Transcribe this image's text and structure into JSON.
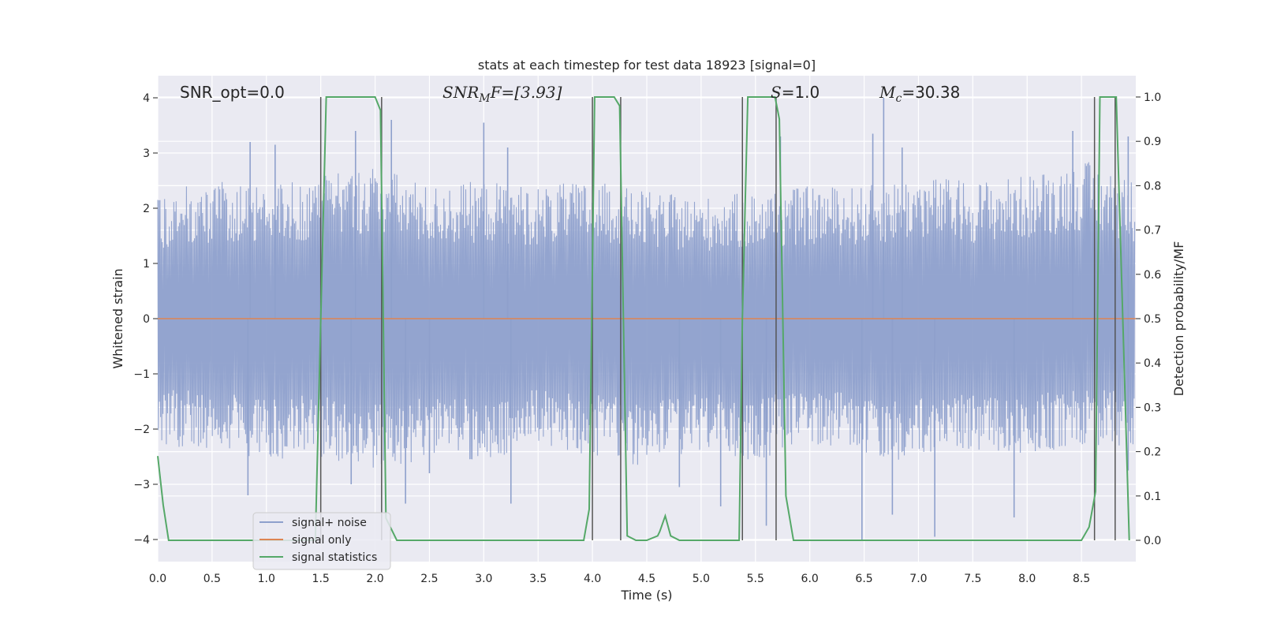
{
  "chart_data": {
    "type": "line",
    "title": "stats at each timestep for test data 18923 [signal=0]",
    "xlabel": "Time (s)",
    "ylabel": "Whitened strain",
    "ylabel_right": "Detection probability/MF",
    "xlim": [
      0.0,
      9.0
    ],
    "ylim": [
      -4.4,
      4.4
    ],
    "ylim_right": [
      -0.048,
      1.048
    ],
    "x_ticks": [
      "0.0",
      "0.5",
      "1.0",
      "1.5",
      "2.0",
      "2.5",
      "3.0",
      "3.5",
      "4.0",
      "4.5",
      "5.0",
      "5.5",
      "6.0",
      "6.5",
      "7.0",
      "7.5",
      "8.0",
      "8.5"
    ],
    "y_ticks": [
      "4",
      "3",
      "2",
      "1",
      "0",
      "−1",
      "−2",
      "−3",
      "−4"
    ],
    "y_ticks_right": [
      "1.0",
      "0.9",
      "0.8",
      "0.7",
      "0.6",
      "0.5",
      "0.4",
      "0.3",
      "0.2",
      "0.1",
      "0.0"
    ],
    "annotations": {
      "snr_opt": "SNR_opt=0.0",
      "snr_mf_base": "SNR",
      "snr_mf_sub": "M",
      "snr_mf_rest": "F=[3.93]",
      "s_sym": "S",
      "s_val": "=1.0",
      "mc_sym": "M",
      "mc_sub": "c",
      "mc_val": "=30.38"
    },
    "legend_position": "lower-left",
    "series": [
      {
        "name": "signal+ noise",
        "color": "#8ea0cc",
        "style": "dense noise",
        "envelope": {
          "x": [
            0.0,
            0.5,
            1.0,
            1.5,
            2.0,
            2.5,
            3.0,
            3.5,
            4.0,
            4.5,
            5.0,
            5.5,
            6.0,
            6.5,
            7.0,
            7.5,
            8.0,
            8.5,
            9.0
          ],
          "upper": [
            2.3,
            2.5,
            2.4,
            2.6,
            2.8,
            2.4,
            2.5,
            2.4,
            2.5,
            2.3,
            2.2,
            2.3,
            2.4,
            2.4,
            2.6,
            2.5,
            2.6,
            2.9,
            2.5
          ],
          "lower": [
            -2.3,
            -2.4,
            -2.6,
            -2.5,
            -2.8,
            -2.5,
            -2.6,
            -2.3,
            -2.5,
            -2.7,
            -2.4,
            -2.6,
            -2.3,
            -2.5,
            -2.6,
            -2.4,
            -2.5,
            -2.3,
            -2.4
          ]
        },
        "spikes": [
          [
            0.85,
            3.2
          ],
          [
            1.08,
            3.15
          ],
          [
            1.82,
            3.4
          ],
          [
            2.15,
            3.6
          ],
          [
            3.0,
            3.55
          ],
          [
            3.22,
            3.1
          ],
          [
            5.73,
            3.3
          ],
          [
            6.58,
            3.35
          ],
          [
            6.68,
            4.0
          ],
          [
            6.85,
            3.1
          ],
          [
            8.42,
            3.4
          ],
          [
            8.93,
            3.3
          ],
          [
            0.83,
            -3.2
          ],
          [
            1.78,
            -3.0
          ],
          [
            2.28,
            -3.35
          ],
          [
            2.5,
            -2.8
          ],
          [
            3.25,
            -3.35
          ],
          [
            4.8,
            -3.05
          ],
          [
            5.18,
            -3.4
          ],
          [
            5.6,
            -3.75
          ],
          [
            6.48,
            -4.0
          ],
          [
            6.76,
            -3.55
          ],
          [
            7.15,
            -3.95
          ],
          [
            7.88,
            -3.6
          ],
          [
            8.93,
            -2.75
          ]
        ]
      },
      {
        "name": "signal only",
        "color": "#dd8452",
        "x": [
          0.0,
          9.0
        ],
        "y": [
          0.0,
          0.0
        ]
      },
      {
        "name": "signal statistics",
        "color": "#55a868",
        "axis": "right",
        "x": [
          0.0,
          0.05,
          0.1,
          0.5,
          1.0,
          1.45,
          1.5,
          1.55,
          2.0,
          2.05,
          2.1,
          2.2,
          3.0,
          3.92,
          3.97,
          4.02,
          4.07,
          4.2,
          4.25,
          4.32,
          4.4,
          4.5,
          4.6,
          4.62,
          4.67,
          4.72,
          4.8,
          5.0,
          5.35,
          5.38,
          5.43,
          5.68,
          5.72,
          5.78,
          5.85,
          6.5,
          8.5,
          8.57,
          8.63,
          8.67,
          8.75,
          8.82,
          8.88,
          8.94
        ],
        "y": [
          0.19,
          0.08,
          0.0,
          0.0,
          0.0,
          0.0,
          0.5,
          1.0,
          1.0,
          0.97,
          0.05,
          0.0,
          0.0,
          0.0,
          0.07,
          1.0,
          1.0,
          1.0,
          0.98,
          0.01,
          0.0,
          0.0,
          0.01,
          0.02,
          0.055,
          0.01,
          0.0,
          0.0,
          0.0,
          0.5,
          1.0,
          1.0,
          0.95,
          0.1,
          0.0,
          0.0,
          0.0,
          0.03,
          0.11,
          1.0,
          1.0,
          1.0,
          0.5,
          0.0
        ]
      }
    ],
    "vertical_lines": [
      1.5,
      2.06,
      4.0,
      4.26,
      5.38,
      5.69,
      8.62,
      8.81
    ]
  }
}
